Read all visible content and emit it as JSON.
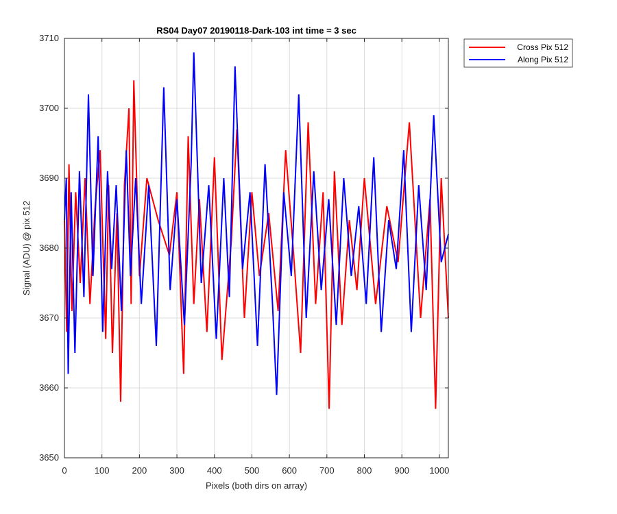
{
  "chart_data": {
    "type": "line",
    "title": "RS04 Day07 20190118-Dark-103 int time = 3 sec",
    "xlabel": "Pixels (both dirs on array)",
    "ylabel": "Signal (ADU) @ pix 512",
    "xlim": [
      0,
      1024
    ],
    "ylim": [
      3650,
      3710
    ],
    "xticks": [
      0,
      100,
      200,
      300,
      400,
      500,
      600,
      700,
      800,
      900,
      1000
    ],
    "yticks": [
      3650,
      3660,
      3670,
      3680,
      3690,
      3700,
      3710
    ],
    "grid": true,
    "legend_position": "outside-top-right",
    "series": [
      {
        "name": "Cross Pix 512",
        "color": "#ff0000",
        "x": [
          0,
          6,
          12,
          20,
          30,
          42,
          55,
          68,
          82,
          95,
          110,
          118,
          128,
          140,
          150,
          160,
          172,
          178,
          185,
          200,
          220,
          250,
          280,
          300,
          318,
          330,
          345,
          360,
          380,
          400,
          420,
          445,
          460,
          480,
          500,
          520,
          545,
          570,
          590,
          610,
          630,
          650,
          670,
          690,
          706,
          720,
          740,
          760,
          780,
          800,
          830,
          860,
          890,
          920,
          950,
          975,
          990,
          1005,
          1024
        ],
        "values": [
          3684,
          3668,
          3692,
          3671,
          3688,
          3675,
          3690,
          3672,
          3686,
          3694,
          3667,
          3689,
          3665,
          3685,
          3658,
          3689,
          3700,
          3672,
          3704,
          3676,
          3690,
          3684,
          3679,
          3688,
          3662,
          3696,
          3672,
          3687,
          3668,
          3693,
          3664,
          3681,
          3697,
          3670,
          3688,
          3676,
          3685,
          3671,
          3694,
          3680,
          3665,
          3698,
          3672,
          3688,
          3657,
          3691,
          3669,
          3684,
          3674,
          3690,
          3672,
          3686,
          3678,
          3698,
          3670,
          3687,
          3657,
          3690,
          3670
        ]
      },
      {
        "name": "Along Pix 512",
        "color": "#0000ff",
        "x": [
          0,
          5,
          10,
          18,
          28,
          40,
          52,
          64,
          76,
          90,
          102,
          115,
          126,
          138,
          152,
          165,
          176,
          190,
          205,
          225,
          245,
          265,
          282,
          300,
          320,
          338,
          345,
          365,
          385,
          405,
          425,
          440,
          455,
          475,
          495,
          515,
          535,
          555,
          566,
          585,
          605,
          625,
          645,
          665,
          685,
          705,
          725,
          745,
          765,
          785,
          805,
          825,
          845,
          865,
          885,
          905,
          925,
          945,
          965,
          985,
          1005,
          1024
        ],
        "values": [
          3684,
          3690,
          3662,
          3688,
          3665,
          3691,
          3673,
          3702,
          3676,
          3696,
          3668,
          3691,
          3677,
          3689,
          3671,
          3694,
          3676,
          3690,
          3672,
          3689,
          3666,
          3703,
          3674,
          3687,
          3669,
          3692,
          3708,
          3675,
          3689,
          3667,
          3690,
          3673,
          3706,
          3677,
          3688,
          3666,
          3692,
          3672,
          3659,
          3688,
          3676,
          3702,
          3670,
          3691,
          3674,
          3687,
          3669,
          3690,
          3676,
          3686,
          3672,
          3693,
          3668,
          3684,
          3677,
          3694,
          3668,
          3689,
          3674,
          3699,
          3678,
          3682
        ]
      }
    ]
  }
}
